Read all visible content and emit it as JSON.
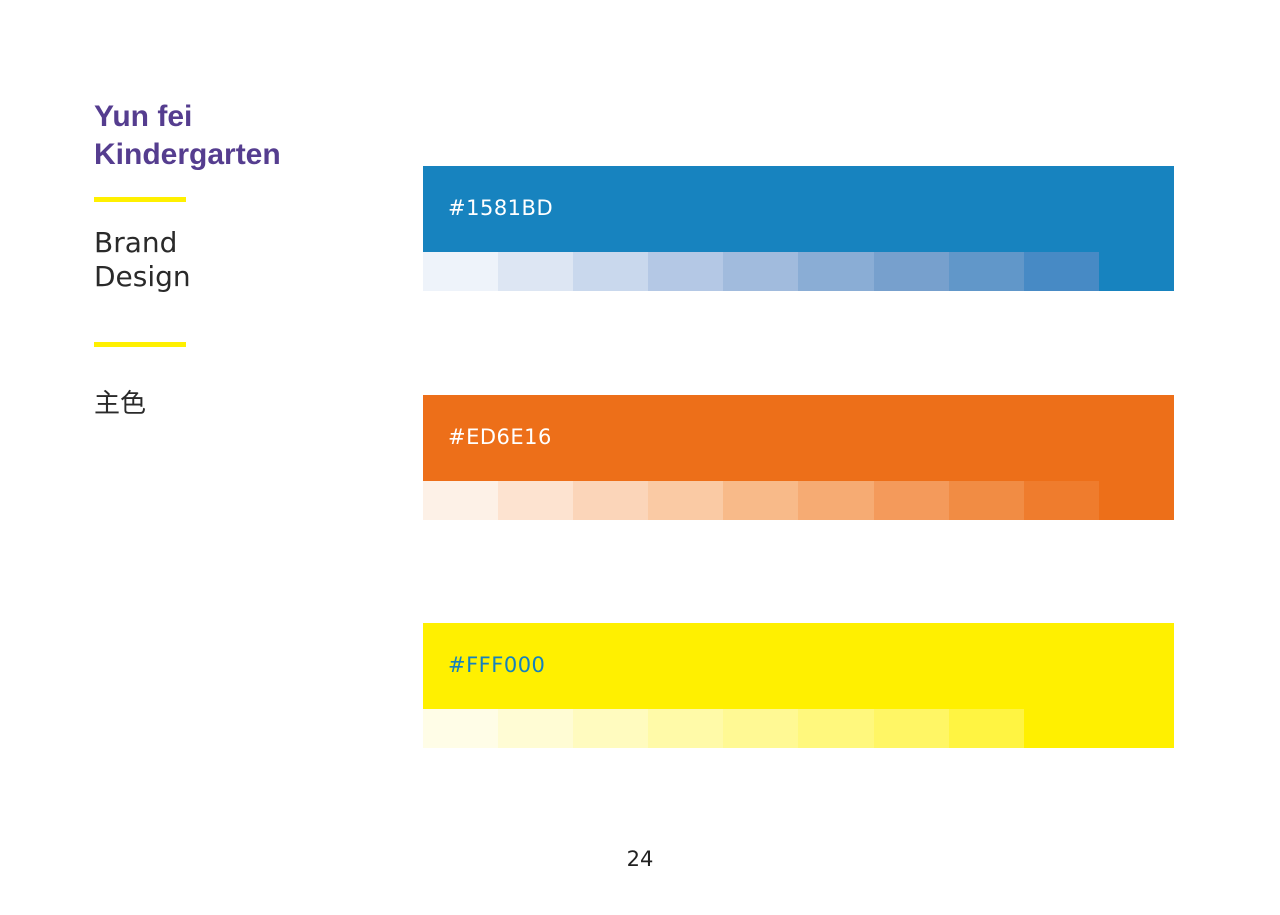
{
  "brand": {
    "title_lines": [
      "Yun fei",
      "Kindergarten"
    ],
    "subtitle_lines": [
      "Brand",
      "Design"
    ],
    "section_label": "主色"
  },
  "palette": [
    {
      "name": "blue",
      "hex_label": "#1581BD",
      "main_color": "#1783bf",
      "label_color": "#ffffff",
      "tints": [
        "#eef3fa",
        "#dde6f3",
        "#c9d8ed",
        "#b4c8e5",
        "#a1bbdd",
        "#8aadd5",
        "#77a0cd",
        "#6197c9",
        "#478ac5",
        "#1783bf"
      ]
    },
    {
      "name": "orange",
      "hex_label": "#ED6E16",
      "main_color": "#ed6f19",
      "label_color": "#ffffff",
      "tints": [
        "#fdf1e7",
        "#fde3d0",
        "#fbd5b9",
        "#facaa4",
        "#f8ba89",
        "#f6ab73",
        "#f49a5b",
        "#f18c44",
        "#ef7c2d",
        "#ed6f19"
      ]
    },
    {
      "name": "yellow",
      "hex_label": "#FFF000",
      "main_color": "#fff000",
      "label_color": "#1581bd",
      "tints": [
        "#fffde7",
        "#fffcd4",
        "#fffbbf",
        "#fffaa8",
        "#fff994",
        "#fff87d",
        "#fff665",
        "#fff442",
        "#fff000",
        "#fff000"
      ]
    }
  ],
  "page_number": "24"
}
